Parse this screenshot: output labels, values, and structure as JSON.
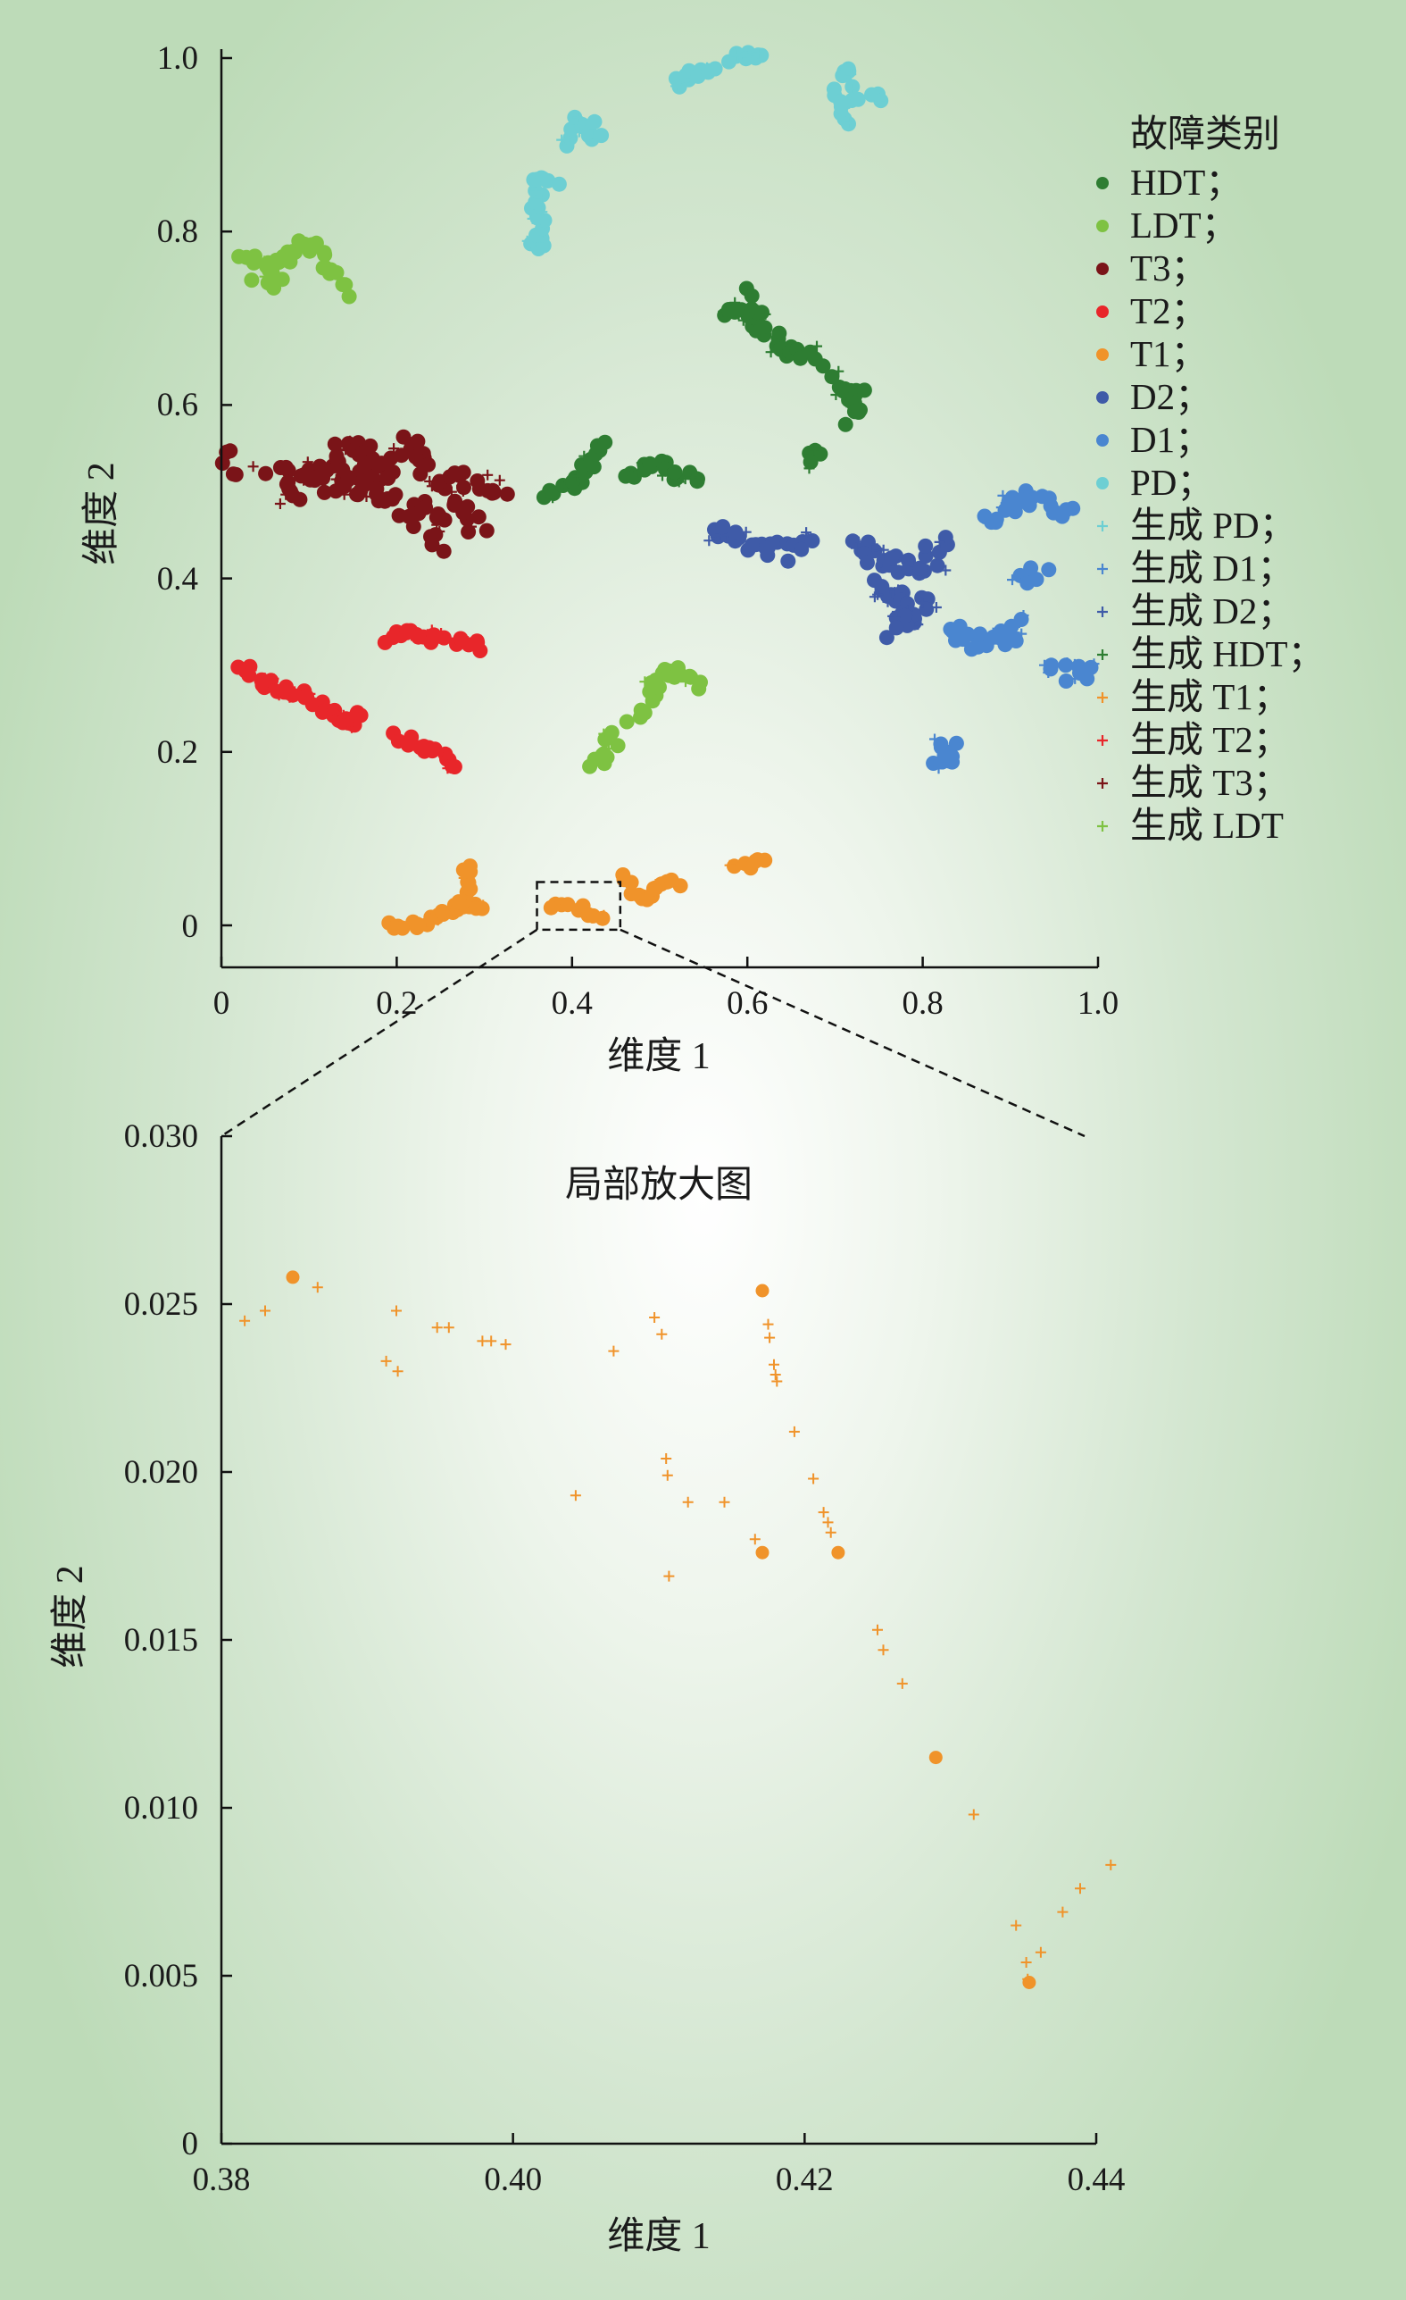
{
  "chart_data": [
    {
      "type": "scatter",
      "title": "",
      "xlabel": "维度 1",
      "ylabel": "维度 2",
      "xlim": [
        0,
        1.0
      ],
      "ylim": [
        0,
        1.0
      ],
      "x_ticks": [
        "0",
        "0.2",
        "0.4",
        "0.6",
        "0.8",
        "1.0"
      ],
      "y_ticks": [
        "0",
        "0.2",
        "0.4",
        "0.6",
        "0.8",
        "1.0"
      ],
      "grid": false,
      "legend_title": "故障类别",
      "legend_position": "right",
      "legend": [
        {
          "label": "HDT；",
          "marker": "dot",
          "color": "#2e7d32"
        },
        {
          "label": "LDT；",
          "marker": "dot",
          "color": "#7ec242"
        },
        {
          "label": "T3；",
          "marker": "dot",
          "color": "#7a1418"
        },
        {
          "label": "T2；",
          "marker": "dot",
          "color": "#e8262a"
        },
        {
          "label": "T1；",
          "marker": "dot",
          "color": "#f0932a"
        },
        {
          "label": "D2；",
          "marker": "dot",
          "color": "#3f5ba8"
        },
        {
          "label": "D1；",
          "marker": "dot",
          "color": "#4a86d0"
        },
        {
          "label": "PD；",
          "marker": "dot",
          "color": "#6dcfd3"
        },
        {
          "label": "生成 PD；",
          "marker": "plus",
          "color": "#6dcfd3"
        },
        {
          "label": "生成 D1；",
          "marker": "plus",
          "color": "#4a86d0"
        },
        {
          "label": "生成 D2；",
          "marker": "plus",
          "color": "#3f5ba8"
        },
        {
          "label": "生成 HDT；",
          "marker": "plus",
          "color": "#2e7d32"
        },
        {
          "label": "生成 T1；",
          "marker": "plus",
          "color": "#f0932a"
        },
        {
          "label": "生成 T2；",
          "marker": "plus",
          "color": "#e8262a"
        },
        {
          "label": "生成 T3；",
          "marker": "plus",
          "color": "#7a1418"
        },
        {
          "label": "生成 LDT",
          "marker": "plus",
          "color": "#7ec242"
        }
      ],
      "zoom_box": {
        "x": [
          0.36,
          0.455
        ],
        "y": [
          -0.005,
          0.05
        ]
      },
      "series": [
        {
          "key": "PD",
          "color": "#6dcfd3",
          "spread": 0.007,
          "segments": [
            [
              [
                0.36,
                0.78
              ],
              [
                0.365,
                0.79
              ],
              [
                0.36,
                0.83
              ],
              [
                0.36,
                0.86
              ],
              [
                0.38,
                0.86
              ]
            ],
            [
              [
                0.4,
                0.9
              ],
              [
                0.41,
                0.93
              ]
            ],
            [
              [
                0.42,
                0.91
              ],
              [
                0.43,
                0.92
              ]
            ],
            [
              [
                0.52,
                0.97
              ],
              [
                0.54,
                0.98
              ],
              [
                0.56,
                0.99
              ]
            ],
            [
              [
                0.58,
                1.0
              ],
              [
                0.62,
                1.0
              ]
            ],
            [
              [
                0.7,
                0.97
              ],
              [
                0.72,
                0.99
              ]
            ],
            [
              [
                0.7,
                0.95
              ],
              [
                0.72,
                0.93
              ]
            ],
            [
              [
                0.72,
                0.96
              ],
              [
                0.75,
                0.95
              ]
            ]
          ]
        },
        {
          "key": "LDT",
          "color": "#7ec242",
          "spread": 0.008,
          "segments": [
            [
              [
                0.02,
                0.77
              ],
              [
                0.05,
                0.76
              ],
              [
                0.08,
                0.77
              ],
              [
                0.1,
                0.79
              ],
              [
                0.12,
                0.76
              ],
              [
                0.14,
                0.73
              ]
            ],
            [
              [
                0.04,
                0.75
              ],
              [
                0.07,
                0.74
              ]
            ],
            [
              [
                0.42,
                0.18
              ],
              [
                0.44,
                0.2
              ],
              [
                0.45,
                0.22
              ]
            ],
            [
              [
                0.47,
                0.24
              ],
              [
                0.49,
                0.26
              ],
              [
                0.5,
                0.29
              ],
              [
                0.52,
                0.29
              ],
              [
                0.55,
                0.28
              ]
            ]
          ]
        },
        {
          "key": "HDT",
          "color": "#2e7d32",
          "spread": 0.008,
          "segments": [
            [
              [
                0.37,
                0.5
              ],
              [
                0.4,
                0.51
              ],
              [
                0.42,
                0.53
              ],
              [
                0.43,
                0.56
              ]
            ],
            [
              [
                0.46,
                0.52
              ],
              [
                0.49,
                0.53
              ],
              [
                0.52,
                0.52
              ],
              [
                0.54,
                0.51
              ]
            ],
            [
              [
                0.57,
                0.71
              ],
              [
                0.6,
                0.7
              ],
              [
                0.63,
                0.68
              ],
              [
                0.65,
                0.66
              ],
              [
                0.68,
                0.65
              ]
            ],
            [
              [
                0.6,
                0.73
              ],
              [
                0.61,
                0.7
              ]
            ],
            [
              [
                0.68,
                0.55
              ],
              [
                0.67,
                0.54
              ]
            ],
            [
              [
                0.7,
                0.63
              ],
              [
                0.72,
                0.61
              ],
              [
                0.73,
                0.61
              ],
              [
                0.72,
                0.58
              ]
            ]
          ]
        },
        {
          "key": "T3",
          "color": "#7a1418",
          "spread": 0.015,
          "segments": [
            [
              [
                0.005,
                0.54
              ],
              [
                0.02,
                0.53
              ]
            ],
            [
              [
                0.06,
                0.52
              ],
              [
                0.1,
                0.51
              ],
              [
                0.14,
                0.53
              ],
              [
                0.18,
                0.52
              ],
              [
                0.21,
                0.55
              ],
              [
                0.24,
                0.52
              ],
              [
                0.28,
                0.51
              ],
              [
                0.32,
                0.49
              ]
            ],
            [
              [
                0.07,
                0.5
              ],
              [
                0.12,
                0.51
              ],
              [
                0.16,
                0.5
              ],
              [
                0.2,
                0.49
              ],
              [
                0.24,
                0.47
              ],
              [
                0.28,
                0.48
              ]
            ],
            [
              [
                0.14,
                0.57
              ],
              [
                0.17,
                0.54
              ],
              [
                0.19,
                0.52
              ]
            ],
            [
              [
                0.23,
                0.46
              ],
              [
                0.24,
                0.44
              ]
            ],
            [
              [
                0.28,
                0.46
              ],
              [
                0.3,
                0.47
              ]
            ]
          ]
        },
        {
          "key": "T2",
          "color": "#e8262a",
          "spread": 0.006,
          "segments": [
            [
              [
                0.02,
                0.3
              ],
              [
                0.05,
                0.28
              ],
              [
                0.1,
                0.26
              ],
              [
                0.13,
                0.24
              ],
              [
                0.15,
                0.23
              ],
              [
                0.16,
                0.25
              ]
            ],
            [
              [
                0.2,
                0.22
              ],
              [
                0.24,
                0.2
              ],
              [
                0.27,
                0.18
              ]
            ],
            [
              [
                0.19,
                0.33
              ],
              [
                0.21,
                0.34
              ],
              [
                0.23,
                0.33
              ],
              [
                0.25,
                0.33
              ]
            ],
            [
              [
                0.27,
                0.33
              ],
              [
                0.3,
                0.32
              ]
            ]
          ]
        },
        {
          "key": "T1",
          "color": "#f0932a",
          "spread": 0.005,
          "segments": [
            [
              [
                0.19,
                0.0
              ],
              [
                0.22,
                0.0
              ],
              [
                0.25,
                0.01
              ],
              [
                0.27,
                0.02
              ],
              [
                0.28,
                0.04
              ],
              [
                0.28,
                0.07
              ]
            ],
            [
              [
                0.28,
                0.02
              ],
              [
                0.3,
                0.02
              ]
            ],
            [
              [
                0.38,
                0.025
              ],
              [
                0.41,
                0.02
              ],
              [
                0.43,
                0.005
              ]
            ],
            [
              [
                0.46,
                0.055
              ],
              [
                0.48,
                0.03
              ],
              [
                0.5,
                0.045
              ],
              [
                0.52,
                0.05
              ]
            ],
            [
              [
                0.59,
                0.065
              ],
              [
                0.62,
                0.075
              ]
            ]
          ]
        },
        {
          "key": "D2",
          "color": "#3f5ba8",
          "spread": 0.012,
          "segments": [
            [
              [
                0.56,
                0.46
              ],
              [
                0.6,
                0.44
              ],
              [
                0.64,
                0.43
              ],
              [
                0.67,
                0.44
              ]
            ],
            [
              [
                0.72,
                0.44
              ],
              [
                0.76,
                0.42
              ],
              [
                0.8,
                0.41
              ],
              [
                0.82,
                0.44
              ]
            ],
            [
              [
                0.75,
                0.4
              ],
              [
                0.77,
                0.38
              ],
              [
                0.79,
                0.37
              ],
              [
                0.8,
                0.36
              ],
              [
                0.76,
                0.34
              ]
            ]
          ]
        },
        {
          "key": "D1",
          "color": "#4a86d0",
          "spread": 0.01,
          "segments": [
            [
              [
                0.83,
                0.34
              ],
              [
                0.86,
                0.32
              ],
              [
                0.88,
                0.34
              ],
              [
                0.9,
                0.33
              ],
              [
                0.91,
                0.35
              ]
            ],
            [
              [
                0.87,
                0.47
              ],
              [
                0.9,
                0.48
              ],
              [
                0.92,
                0.5
              ],
              [
                0.95,
                0.48
              ],
              [
                0.97,
                0.48
              ]
            ],
            [
              [
                0.91,
                0.4
              ],
              [
                0.94,
                0.41
              ]
            ],
            [
              [
                0.95,
                0.29
              ],
              [
                0.99,
                0.29
              ]
            ],
            [
              [
                0.81,
                0.19
              ],
              [
                0.83,
                0.19
              ],
              [
                0.83,
                0.21
              ]
            ]
          ]
        }
      ]
    },
    {
      "type": "scatter",
      "title": "局部放大图",
      "xlabel": "维度 1",
      "ylabel": "维度 2",
      "xlim": [
        0.38,
        0.44
      ],
      "ylim": [
        0,
        0.03
      ],
      "x_ticks": [
        "0.38",
        "0.40",
        "0.42",
        "0.44"
      ],
      "y_ticks": [
        "0",
        "0.005",
        "0.010",
        "0.015",
        "0.020",
        "0.025",
        "0.030"
      ],
      "grid": false,
      "color": "#f0932a",
      "series": [
        {
          "name": "T1；",
          "marker": "dot",
          "points": [
            [
              0.3849,
              0.0258
            ],
            [
              0.4171,
              0.0254
            ],
            [
              0.4171,
              0.0176
            ],
            [
              0.4223,
              0.0176
            ],
            [
              0.429,
              0.0115
            ],
            [
              0.4354,
              0.0048
            ]
          ]
        },
        {
          "name": "生成 T1；",
          "marker": "plus",
          "points": [
            [
              0.3816,
              0.0245
            ],
            [
              0.383,
              0.0248
            ],
            [
              0.3866,
              0.0255
            ],
            [
              0.3913,
              0.0233
            ],
            [
              0.392,
              0.0248
            ],
            [
              0.3921,
              0.023
            ],
            [
              0.3948,
              0.0243
            ],
            [
              0.3956,
              0.0243
            ],
            [
              0.3979,
              0.0239
            ],
            [
              0.3985,
              0.0239
            ],
            [
              0.3995,
              0.0238
            ],
            [
              0.4043,
              0.0193
            ],
            [
              0.4069,
              0.0236
            ],
            [
              0.4097,
              0.0246
            ],
            [
              0.4102,
              0.0241
            ],
            [
              0.4105,
              0.0204
            ],
            [
              0.4106,
              0.0199
            ],
            [
              0.4107,
              0.0169
            ],
            [
              0.412,
              0.0191
            ],
            [
              0.4145,
              0.0191
            ],
            [
              0.4166,
              0.018
            ],
            [
              0.4175,
              0.0244
            ],
            [
              0.4176,
              0.024
            ],
            [
              0.4179,
              0.0232
            ],
            [
              0.418,
              0.0229
            ],
            [
              0.4181,
              0.0227
            ],
            [
              0.4193,
              0.0212
            ],
            [
              0.4206,
              0.0198
            ],
            [
              0.4213,
              0.0188
            ],
            [
              0.4216,
              0.0185
            ],
            [
              0.4218,
              0.0182
            ],
            [
              0.425,
              0.0153
            ],
            [
              0.4254,
              0.0147
            ],
            [
              0.4267,
              0.0137
            ],
            [
              0.4316,
              0.0098
            ],
            [
              0.4345,
              0.0065
            ],
            [
              0.4352,
              0.0054
            ],
            [
              0.4353,
              0.0049
            ],
            [
              0.4362,
              0.0057
            ],
            [
              0.4377,
              0.0069
            ],
            [
              0.4389,
              0.0076
            ],
            [
              0.441,
              0.0083
            ]
          ]
        }
      ]
    }
  ]
}
